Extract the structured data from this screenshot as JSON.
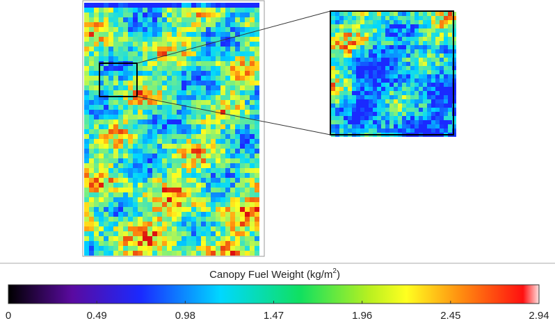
{
  "colorbar": {
    "title": "Canopy Fuel Weight (kg/m",
    "title_superscript": "2",
    "title_end": ")",
    "lim": [
      0,
      2.94
    ],
    "ticks": [
      0,
      0.49,
      0.98,
      1.47,
      1.96,
      2.45,
      2.94
    ]
  }
}
